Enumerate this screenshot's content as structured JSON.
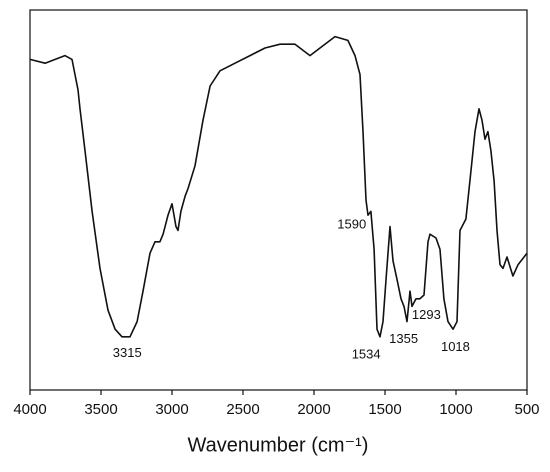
{
  "chart_data": {
    "type": "line",
    "xlabel": "Wavenumber (cm⁻¹)",
    "xlim": [
      4000,
      500
    ],
    "xticks": [
      4000,
      3500,
      3000,
      2500,
      2000,
      1500,
      1000,
      500
    ],
    "ylim": [
      0,
      100
    ],
    "series": [
      {
        "color": "#111111",
        "x": [
          4000,
          3894,
          3754,
          3704,
          3662,
          3648,
          3613,
          3563,
          3507,
          3451,
          3401,
          3352,
          3296,
          3246,
          3204,
          3155,
          3120,
          3085,
          3063,
          3028,
          3000,
          2972,
          2958,
          2937,
          2908,
          2887,
          2838,
          2782,
          2732,
          2662,
          2556,
          2451,
          2345,
          2239,
          2134,
          2028,
          1958,
          1852,
          1761,
          1711,
          1676,
          1655,
          1634,
          1620,
          1599,
          1577,
          1556,
          1535,
          1514,
          1493,
          1465,
          1444,
          1415,
          1387,
          1366,
          1345,
          1324,
          1310,
          1282,
          1254,
          1225,
          1197,
          1183,
          1141,
          1113,
          1085,
          1056,
          1021,
          993,
          972,
          958,
          930,
          894,
          866,
          838,
          817,
          796,
          775,
          754,
          732,
          711,
          690,
          669,
          641,
          599,
          563,
          500
        ],
        "values": [
          87,
          86,
          88,
          87,
          79,
          74,
          63,
          47,
          32,
          21,
          16,
          14,
          14,
          18,
          26,
          36,
          39,
          39,
          41,
          46,
          49,
          43,
          42,
          47,
          51,
          53,
          59,
          71,
          80,
          84,
          86,
          88,
          90,
          91,
          91,
          88,
          90,
          93,
          92,
          88,
          83,
          68,
          50,
          46,
          47,
          37,
          16,
          14,
          18,
          29,
          43,
          34,
          29,
          24,
          22,
          18,
          26,
          22,
          24,
          24,
          25,
          39,
          41,
          40,
          37,
          24,
          18,
          16,
          18,
          42,
          43,
          45,
          58,
          68,
          74,
          71,
          66,
          68,
          63,
          55,
          42,
          33,
          32,
          35,
          30,
          33,
          36
        ]
      }
    ],
    "peaks": [
      3315,
      1590,
      1534,
      1355,
      1293,
      1018
    ]
  }
}
